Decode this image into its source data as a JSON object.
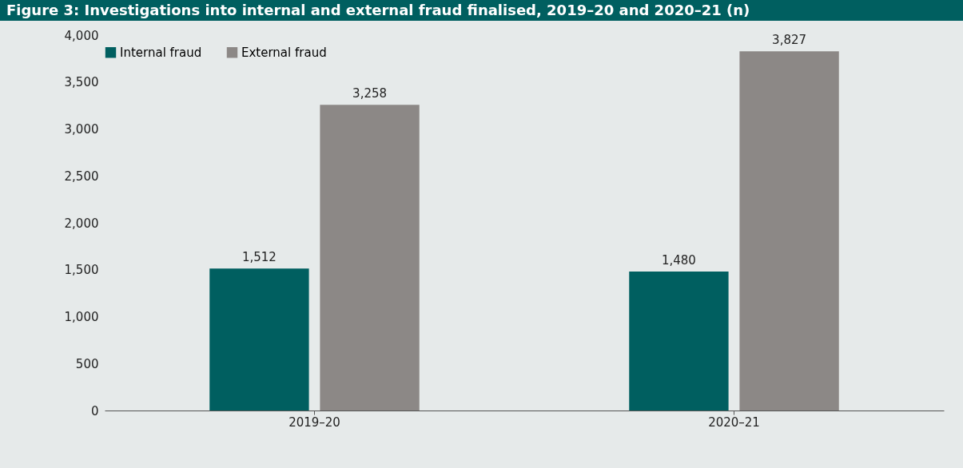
{
  "chart_data": {
    "type": "bar",
    "title": "Figure 3: Investigations into internal and external fraud finalised, 2019–20 and 2020–21 (n)",
    "categories": [
      "2019–20",
      "2020–21"
    ],
    "series": [
      {
        "name": "Internal fraud",
        "color": "#005f60",
        "values": [
          1512,
          1480
        ],
        "value_labels": [
          "1,512",
          "1,480"
        ]
      },
      {
        "name": "External fraud",
        "color": "#8c8886",
        "values": [
          3258,
          3827
        ],
        "value_labels": [
          "3,258",
          "3,827"
        ]
      }
    ],
    "ylim": [
      0,
      4000
    ],
    "yticks": [
      0,
      500,
      {
        "value": 1000,
        "label": "1,000"
      },
      {
        "value": 1500,
        "label": "1,500"
      },
      {
        "value": 2000,
        "label": "2,000"
      },
      {
        "value": 2500,
        "label": "2,500"
      },
      {
        "value": 3000,
        "label": "3,000"
      },
      {
        "value": 3500,
        "label": "3,500"
      },
      {
        "value": 4000,
        "label": "4,000"
      }
    ],
    "legend": "top",
    "grid": false
  }
}
